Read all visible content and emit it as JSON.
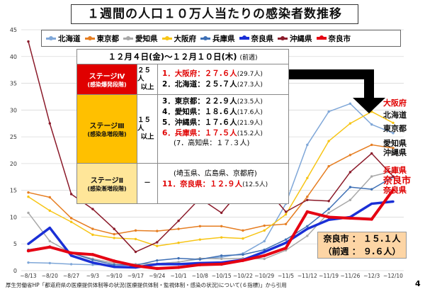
{
  "title": "１週間の人口１０万人当たりの感染者数推移",
  "colors": {
    "hokkaido": "#7fa7d8",
    "tokyo": "#e67e22",
    "aichi": "#a8a8a8",
    "osaka": "#f7c516",
    "hyogo": "#3d6fb5",
    "nara_pref": "#1a2fd6",
    "okinawa": "#8b1a2a",
    "nara_city": "#e50012"
  },
  "chart_data": {
    "type": "line",
    "title": "１週間の人口１０万人当たりの感染者数推移",
    "ylim": [
      0,
      45
    ],
    "yticks": [
      0,
      5,
      10,
      15,
      20,
      25,
      30,
      35,
      40,
      45
    ],
    "categories": [
      "~8/13",
      "~8/20",
      "~8/27",
      "~9/3",
      "~9/10",
      "~9/17",
      "~9/24",
      "~10/1",
      "~10/8",
      "~10/15",
      "~10/22",
      "~10/29",
      "~11/5",
      "~11/12",
      "~11/19",
      "~11/26",
      "~12/3",
      "~12/10"
    ],
    "series": [
      {
        "key": "hokkaido",
        "name": "北海道",
        "values": [
          1.5,
          1.4,
          1.2,
          1.1,
          1.1,
          1.2,
          1.3,
          1.6,
          2.2,
          2.5,
          3.2,
          5.5,
          12.5,
          23.5,
          29.7,
          31.2,
          27.3,
          25.7
        ]
      },
      {
        "key": "tokyo",
        "name": "東京都",
        "values": [
          14.6,
          13.7,
          9.8,
          7.8,
          6.8,
          7.5,
          7.4,
          7.8,
          8.3,
          8.3,
          7.5,
          8.4,
          8.7,
          13.8,
          19.5,
          21.6,
          23.5,
          22.9
        ]
      },
      {
        "key": "aichi",
        "name": "愛知県",
        "values": [
          10.8,
          5.5,
          3.3,
          2.2,
          1.4,
          1.2,
          1.3,
          1.6,
          2.3,
          2.2,
          2.3,
          2.2,
          3.8,
          6.5,
          10.8,
          13.2,
          17.6,
          18.6
        ]
      },
      {
        "key": "osaka",
        "name": "大阪府",
        "values": [
          13.8,
          11.2,
          9.1,
          6.7,
          6.1,
          5.9,
          4.6,
          5.2,
          5.8,
          6.2,
          6.0,
          7.5,
          10.5,
          17.3,
          24.2,
          27.5,
          29.7,
          27.6
        ]
      },
      {
        "key": "hyogo",
        "name": "兵庫県",
        "values": [
          3.9,
          4.5,
          3.3,
          2.0,
          1.1,
          1.0,
          1.9,
          2.3,
          2.1,
          2.8,
          3.0,
          3.9,
          5.8,
          8.3,
          11.5,
          15.6,
          15.2,
          17.5
        ]
      },
      {
        "key": "nara_pref",
        "name": "奈良県",
        "values": [
          5.0,
          8.0,
          2.8,
          1.5,
          0.7,
          0.6,
          1.2,
          1.2,
          1.4,
          1.5,
          2.0,
          3.5,
          5.2,
          7.8,
          9.5,
          10.0,
          12.5,
          12.9
        ]
      },
      {
        "key": "okinawa",
        "name": "沖縄県",
        "values": [
          42.8,
          27.5,
          14.3,
          11.5,
          7.8,
          3.5,
          5.3,
          9.3,
          13.5,
          10.8,
          15.5,
          15.7,
          11.0,
          13.2,
          13.0,
          18.4,
          21.9,
          17.6
        ]
      },
      {
        "key": "nara_city",
        "name": "奈良市",
        "values": [
          3.7,
          4.4,
          3.3,
          3.0,
          1.8,
          0.9,
          0.4,
          0.6,
          1.1,
          1.2,
          1.9,
          2.8,
          4.2,
          11.0,
          10.0,
          9.8,
          9.6,
          15.1
        ]
      }
    ],
    "end_labels": [
      {
        "key": "osaka",
        "text": "大阪府"
      },
      {
        "key": "hokkaido",
        "text": "北海道"
      },
      {
        "key": "tokyo",
        "text": "東京都"
      },
      {
        "key": "aichi",
        "text": "愛知県"
      },
      {
        "key": "okinawa",
        "text": "沖縄県"
      },
      {
        "key": "hyogo",
        "text": "兵庫県"
      },
      {
        "key": "nara_city",
        "text": "奈良市"
      },
      {
        "key": "nara_pref",
        "text": "奈良県"
      }
    ]
  },
  "table": {
    "date_range": "１２月４日(金)～１２月１０日(木)",
    "prev_week_label": "(前週)",
    "stage4": {
      "name": "ステージⅣ",
      "sub": "(感染爆発段階)",
      "threshold_1": "２５人",
      "threshold_2": "以上",
      "items": [
        {
          "text": "1．大阪府：２７.６人",
          "prev": "(29.7人)",
          "red": true
        },
        {
          "text": "2．北海道：２５.７人",
          "prev": "(27.3人)",
          "red": false
        }
      ]
    },
    "stage3": {
      "name": "ステージⅢ",
      "sub": "(感染急増段階)",
      "threshold_1": "１５人",
      "threshold_2": "以上",
      "items": [
        {
          "text": "3．東京都：２２.９人",
          "prev": "(23.5人)",
          "red": false
        },
        {
          "text": "4．愛知県：１８.６人",
          "prev": "(17.6人)",
          "red": false
        },
        {
          "text": "5．沖縄県：１７.６人",
          "prev": "(21.9人)",
          "red": false
        },
        {
          "text": "6．兵庫県：１７.５人",
          "prev": "(15.2人)",
          "red": true
        }
      ],
      "note": "(7．高知県：１７.３人)"
    },
    "stage2": {
      "name": "ステージⅡ",
      "sub": "(感染漸増段階)",
      "threshold": "－",
      "note": "(埼玉県、広島県、京都府)",
      "item": {
        "text": "11．奈良県：１２.９人",
        "prev": "(12.5人)"
      }
    }
  },
  "info_box": {
    "line1": "奈良市 ： １５.１人",
    "line2": "（前週 ： ９.６人）"
  },
  "source": "厚生労働省HP「都道府県の医療提供体制等の状況(医療提供体制・監視体制・感染の状況)について(６指標)」から引用",
  "page_number": "4"
}
